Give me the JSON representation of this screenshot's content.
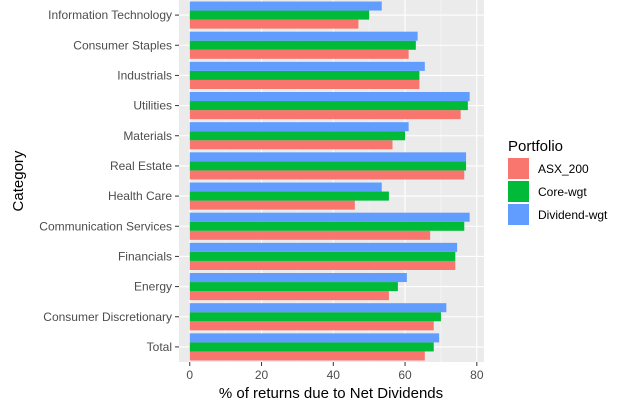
{
  "chart_data": {
    "type": "bar",
    "orientation": "horizontal",
    "title": "",
    "xlabel": "% of returns due to Net Dividends",
    "ylabel": "Category",
    "xlim": [
      -3,
      82
    ],
    "xticks": [
      0,
      20,
      40,
      60,
      80
    ],
    "grid": true,
    "legend": {
      "title": "Portfolio",
      "placement": "right"
    },
    "categories": [
      "Information Technology",
      "Consumer Staples",
      "Industrials",
      "Utilities",
      "Materials",
      "Real Estate",
      "Health Care",
      "Communication Services",
      "Financials",
      "Energy",
      "Consumer Discretionary",
      "Total"
    ],
    "series": [
      {
        "name": "ASX_200",
        "color": "#F8766D",
        "values": [
          47,
          61,
          64,
          75.5,
          56.5,
          76.5,
          46,
          67,
          74,
          55.5,
          68,
          65.5
        ]
      },
      {
        "name": "Core-wgt",
        "color": "#00BA38",
        "values": [
          50,
          63,
          64,
          77.5,
          60,
          77,
          55.5,
          76.5,
          74,
          58,
          70,
          68
        ]
      },
      {
        "name": "Dividend-wgt",
        "color": "#619CFF",
        "values": [
          53.5,
          63.5,
          65.5,
          78,
          61,
          77,
          53.5,
          78,
          74.5,
          60.5,
          71.5,
          69.5
        ]
      }
    ]
  }
}
